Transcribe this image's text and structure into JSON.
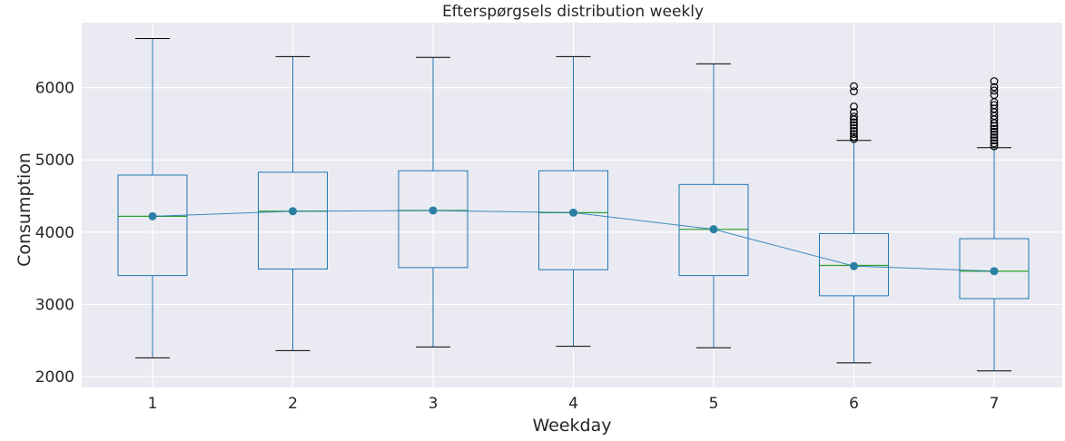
{
  "chart_data": {
    "type": "box",
    "title": "Efterspørgsels distribution weekly",
    "xlabel": "Weekday",
    "ylabel": "Consumption",
    "ylim": [
      1850,
      6900
    ],
    "yticks": [
      2000,
      3000,
      4000,
      5000,
      6000
    ],
    "grid": true,
    "categories": [
      "1",
      "2",
      "3",
      "4",
      "5",
      "6",
      "7"
    ],
    "boxes": [
      {
        "category": "1",
        "whisker_low": 2260,
        "q1": 3400,
        "median": 4220,
        "q3": 4790,
        "whisker_high": 6680,
        "outliers": []
      },
      {
        "category": "2",
        "whisker_low": 2360,
        "q1": 3490,
        "median": 4290,
        "q3": 4830,
        "whisker_high": 6430,
        "outliers": []
      },
      {
        "category": "3",
        "whisker_low": 2410,
        "q1": 3510,
        "median": 4300,
        "q3": 4850,
        "whisker_high": 6420,
        "outliers": []
      },
      {
        "category": "4",
        "whisker_low": 2420,
        "q1": 3480,
        "median": 4270,
        "q3": 4850,
        "whisker_high": 6430,
        "outliers": []
      },
      {
        "category": "5",
        "whisker_low": 2400,
        "q1": 3400,
        "median": 4040,
        "q3": 4660,
        "whisker_high": 6330,
        "outliers": []
      },
      {
        "category": "6",
        "whisker_low": 2190,
        "q1": 3120,
        "median": 3540,
        "q3": 3980,
        "whisker_high": 5270,
        "outliers": [
          5290,
          5320,
          5360,
          5400,
          5440,
          5480,
          5520,
          5560,
          5600,
          5660,
          5740,
          5950,
          6020
        ]
      },
      {
        "category": "7",
        "whisker_low": 2080,
        "q1": 3080,
        "median": 3460,
        "q3": 3910,
        "whisker_high": 5170,
        "outliers": [
          5190,
          5230,
          5270,
          5310,
          5350,
          5390,
          5430,
          5470,
          5510,
          5560,
          5610,
          5660,
          5710,
          5760,
          5800,
          5900,
          5960,
          6010,
          6090
        ]
      }
    ],
    "mean_line": {
      "values": [
        4220,
        4290,
        4300,
        4270,
        4040,
        3530,
        3460
      ]
    },
    "colors": {
      "box": "#1f77b4",
      "median": "#2ca02c",
      "mean": "#1f77b4",
      "background": "#eaeaf2",
      "grid": "#ffffff",
      "caps": "#000000"
    }
  }
}
